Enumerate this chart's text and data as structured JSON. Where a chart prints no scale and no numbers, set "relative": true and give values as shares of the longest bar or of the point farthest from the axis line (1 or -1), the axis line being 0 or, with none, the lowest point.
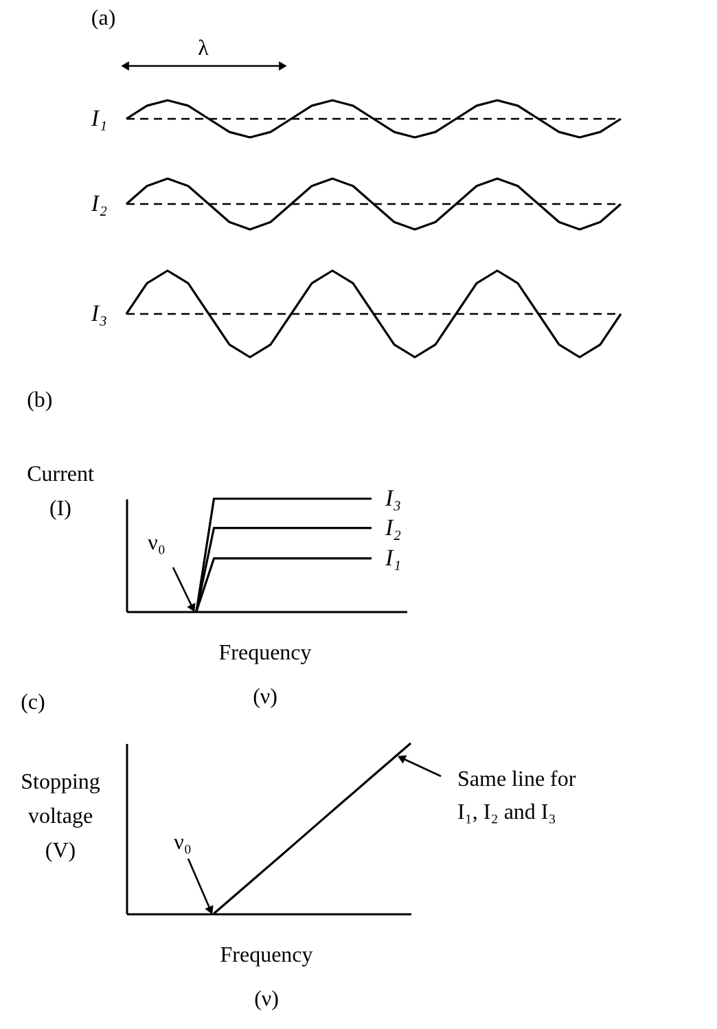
{
  "chart_data": [
    {
      "type": "line",
      "title": "(a)",
      "relative": true,
      "tick_labels": false,
      "categories": [
        null,
        null,
        null,
        null,
        null,
        null,
        null,
        null,
        null,
        null,
        null,
        null,
        null,
        null,
        null,
        null,
        null,
        null,
        null,
        null,
        null,
        null,
        null,
        null,
        null
      ],
      "series": [
        {
          "name": "I₁",
          "color": "#000000",
          "values": [
            0.5,
            0.854,
            1,
            0.854,
            0.5,
            0.146,
            0,
            0.146,
            0.5,
            0.854,
            1,
            0.854,
            0.5,
            0.146,
            0,
            0.146,
            0.5,
            0.854,
            1,
            0.854,
            0.5,
            0.146,
            0,
            0.146,
            0.5
          ]
        },
        {
          "color": "#000000",
          "line_style": "dashed",
          "values": [
            0.5,
            0.5,
            0.5,
            0.5,
            0.5,
            0.5,
            0.5,
            0.5,
            0.5,
            0.5,
            0.5,
            0.5,
            0.5,
            0.5,
            0.5,
            0.5,
            0.5,
            0.5,
            0.5,
            0.5,
            0.5,
            0.5,
            0.5,
            0.5,
            0.5
          ]
        }
      ],
      "annotations": [
        "λ"
      ]
    },
    {
      "type": "line",
      "relative": true,
      "tick_labels": false,
      "categories": [
        null,
        null,
        null,
        null,
        null,
        null,
        null,
        null,
        null,
        null,
        null,
        null,
        null,
        null,
        null,
        null,
        null,
        null,
        null,
        null,
        null,
        null,
        null,
        null,
        null
      ],
      "series": [
        {
          "name": "I₂",
          "color": "#000000",
          "values": [
            0.5,
            0.854,
            1,
            0.854,
            0.5,
            0.146,
            0,
            0.146,
            0.5,
            0.854,
            1,
            0.854,
            0.5,
            0.146,
            0,
            0.146,
            0.5,
            0.854,
            1,
            0.854,
            0.5,
            0.146,
            0,
            0.146,
            0.5
          ]
        },
        {
          "color": "#000000",
          "line_style": "dashed",
          "values": [
            0.5,
            0.5,
            0.5,
            0.5,
            0.5,
            0.5,
            0.5,
            0.5,
            0.5,
            0.5,
            0.5,
            0.5,
            0.5,
            0.5,
            0.5,
            0.5,
            0.5,
            0.5,
            0.5,
            0.5,
            0.5,
            0.5,
            0.5,
            0.5,
            0.5
          ]
        }
      ]
    },
    {
      "type": "line",
      "relative": true,
      "tick_labels": false,
      "categories": [
        null,
        null,
        null,
        null,
        null,
        null,
        null,
        null,
        null,
        null,
        null,
        null,
        null,
        null,
        null,
        null,
        null,
        null,
        null,
        null,
        null,
        null,
        null,
        null,
        null
      ],
      "series": [
        {
          "name": "I₃",
          "color": "#000000",
          "values": [
            0.5,
            0.854,
            1,
            0.854,
            0.5,
            0.146,
            0,
            0.146,
            0.5,
            0.854,
            1,
            0.854,
            0.5,
            0.146,
            0,
            0.146,
            0.5,
            0.854,
            1,
            0.854,
            0.5,
            0.146,
            0,
            0.146,
            0.5
          ]
        },
        {
          "color": "#000000",
          "line_style": "dashed",
          "values": [
            0.5,
            0.5,
            0.5,
            0.5,
            0.5,
            0.5,
            0.5,
            0.5,
            0.5,
            0.5,
            0.5,
            0.5,
            0.5,
            0.5,
            0.5,
            0.5,
            0.5,
            0.5,
            0.5,
            0.5,
            0.5,
            0.5,
            0.5,
            0.5,
            0.5
          ]
        }
      ]
    },
    {
      "type": "line",
      "title": "(b)",
      "relative": true,
      "tick_labels": false,
      "xlabel": "Frequency (ν)",
      "ylabel": "Current (I)",
      "categories": [
        null,
        null,
        null,
        null,
        null,
        null,
        null,
        null,
        null,
        null,
        null,
        null,
        null,
        null,
        null,
        null,
        null
      ],
      "series": [
        {
          "name": "I₁",
          "color": "#000000",
          "values": [
            null,
            null,
            null,
            null,
            0,
            0.47,
            0.47,
            0.47,
            0.47,
            0.47,
            0.47,
            0.47,
            0.47,
            0.47,
            0.47,
            null,
            null
          ]
        },
        {
          "name": "I₂",
          "color": "#000000",
          "values": [
            null,
            null,
            null,
            null,
            0,
            0.74,
            0.74,
            0.74,
            0.74,
            0.74,
            0.74,
            0.74,
            0.74,
            0.74,
            0.74,
            null,
            null
          ]
        },
        {
          "name": "I₃",
          "color": "#000000",
          "values": [
            null,
            null,
            null,
            null,
            0,
            1,
            1,
            1,
            1,
            1,
            1,
            1,
            1,
            1,
            1,
            null,
            null
          ]
        }
      ],
      "annotations": [
        "ν₀"
      ]
    },
    {
      "type": "line",
      "title": "(c)",
      "relative": true,
      "tick_labels": false,
      "xlabel": "Frequency (ν)",
      "ylabel": "Stopping voltage (V)",
      "categories": [
        null,
        null,
        null,
        null,
        null,
        null,
        null,
        null,
        null,
        null,
        null,
        null,
        null,
        null
      ],
      "series": [
        {
          "color": "#000000",
          "values": [
            null,
            null,
            null,
            null,
            0,
            0.111,
            0.222,
            0.333,
            0.444,
            0.556,
            0.667,
            0.778,
            0.889,
            1
          ]
        }
      ],
      "annotations": [
        "ν₀",
        "Same line for I₁, I₂ and I₃"
      ]
    }
  ]
}
